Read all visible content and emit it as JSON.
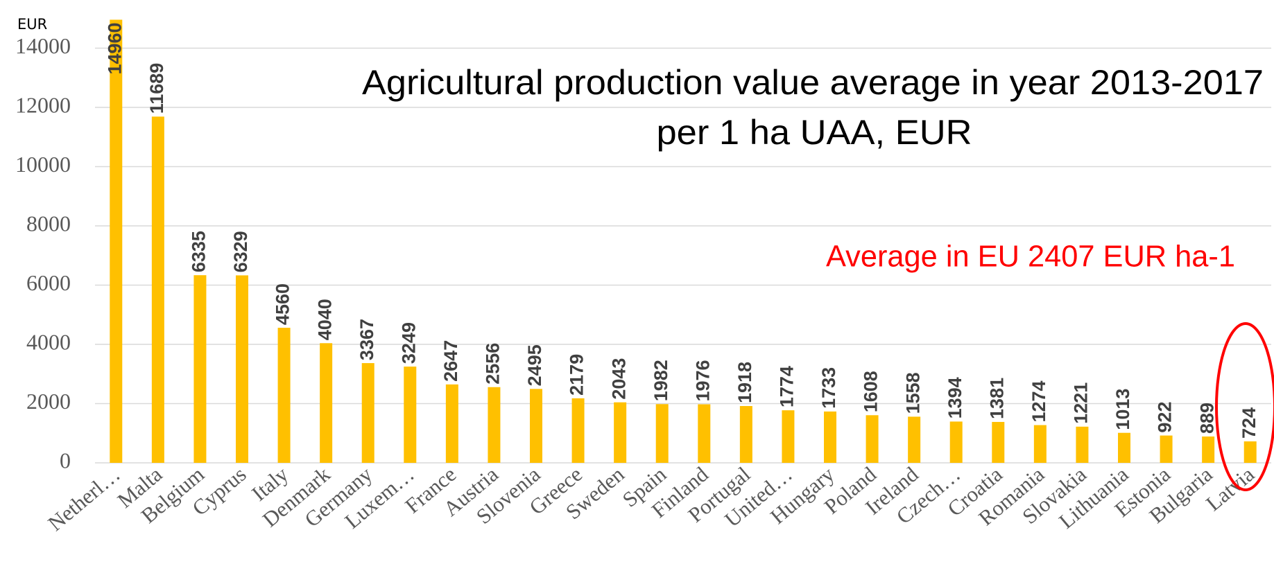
{
  "chart_data": {
    "type": "bar",
    "title": [
      "Agricultural production value average in year 2013-2017",
      "per 1 ha UAA, EUR"
    ],
    "y_axis_label": "EUR",
    "annotation": "Average in EU 2407 EUR ha-1",
    "categories": [
      "Netherl…",
      "Malta",
      "Belgium",
      "Cyprus",
      "Italy",
      "Denmark",
      "Germany",
      "Luxem…",
      "France",
      "Austria",
      "Slovenia",
      "Greece",
      "Sweden",
      "Spain",
      "Finland",
      "Portugal",
      "United…",
      "Hungary",
      "Poland",
      "Ireland",
      "Czech…",
      "Croatia",
      "Romania",
      "Slovakia",
      "Lithuania",
      "Estonia",
      "Bulgaria",
      "Latvia"
    ],
    "values": [
      14960,
      11689,
      6335,
      6329,
      4560,
      4040,
      3367,
      3249,
      2647,
      2556,
      2495,
      2179,
      2043,
      1982,
      1976,
      1918,
      1774,
      1733,
      1608,
      1558,
      1394,
      1381,
      1274,
      1221,
      1013,
      922,
      889,
      724
    ],
    "color": "#ffc000",
    "ylim": [
      0,
      15000
    ],
    "yticks": [
      0,
      2000,
      4000,
      6000,
      8000,
      10000,
      12000,
      14000
    ],
    "grid": true
  }
}
